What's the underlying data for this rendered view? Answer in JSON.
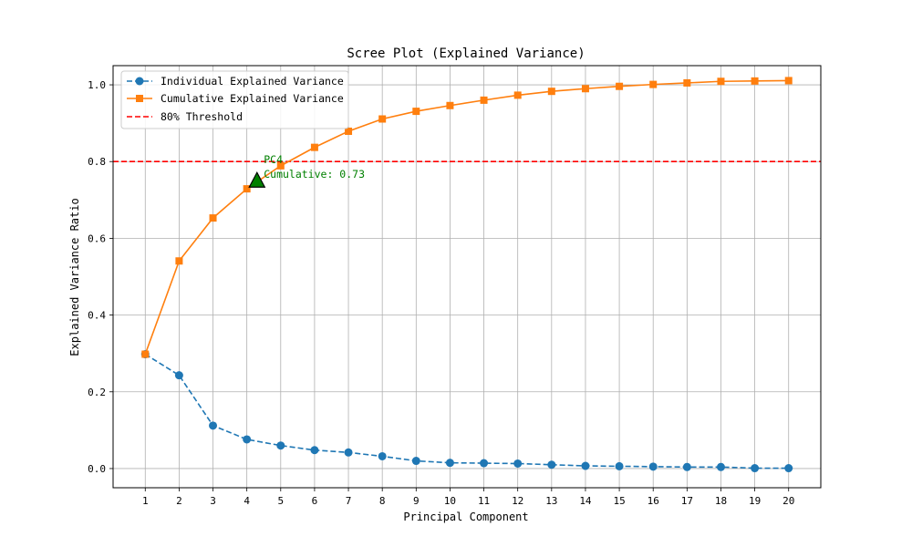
{
  "chart_data": {
    "type": "line",
    "title": "Scree Plot (Explained Variance)",
    "xlabel": "Principal Component",
    "ylabel": "Explained Variance Ratio",
    "xlim": [
      0.05,
      20.95
    ],
    "ylim": [
      -0.05,
      1.05
    ],
    "x_ticks": [
      1,
      2,
      3,
      4,
      5,
      6,
      7,
      8,
      9,
      10,
      11,
      12,
      13,
      14,
      15,
      16,
      17,
      18,
      19,
      20
    ],
    "y_ticks": [
      0.0,
      0.2,
      0.4,
      0.6,
      0.8,
      1.0
    ],
    "x_tick_labels": [
      "1",
      "2",
      "3",
      "4",
      "5",
      "6",
      "7",
      "8",
      "9",
      "10",
      "11",
      "12",
      "13",
      "14",
      "15",
      "16",
      "17",
      "18",
      "19",
      "20"
    ],
    "y_tick_labels": [
      "0.0",
      "0.2",
      "0.4",
      "0.6",
      "0.8",
      "1.0"
    ],
    "grid": true,
    "legend_position": "top-left",
    "x": [
      1,
      2,
      3,
      4,
      5,
      6,
      7,
      8,
      9,
      10,
      11,
      12,
      13,
      14,
      15,
      16,
      17,
      18,
      19,
      20
    ],
    "series": [
      {
        "name": "Individual Explained Variance",
        "color": "#1f77b4",
        "linestyle": "dashed",
        "marker": "circle",
        "values": [
          0.298,
          0.243,
          0.112,
          0.076,
          0.06,
          0.048,
          0.042,
          0.032,
          0.02,
          0.015,
          0.014,
          0.013,
          0.01,
          0.007,
          0.006,
          0.005,
          0.004,
          0.004,
          0.001,
          0.001
        ]
      },
      {
        "name": "Cumulative Explained Variance",
        "color": "#ff7f0e",
        "linestyle": "solid",
        "marker": "square",
        "values": [
          0.298,
          0.541,
          0.653,
          0.729,
          0.789,
          0.837,
          0.879,
          0.911,
          0.931,
          0.946,
          0.96,
          0.973,
          0.983,
          0.99,
          0.996,
          1.001,
          1.005,
          1.009,
          1.01,
          1.011
        ]
      }
    ],
    "threshold": {
      "name": "80% Threshold",
      "value": 0.8,
      "color": "#ff0000",
      "linestyle": "dashed"
    },
    "annotation": {
      "marker_x": 4.3,
      "marker_y": 0.75,
      "marker_color": "#008000",
      "text_x": 4.5,
      "text_y_line1": 0.8,
      "text_y_line2": 0.763,
      "line1": "PC4",
      "line2": "Cumulative: 0.73",
      "color": "#008000"
    }
  }
}
